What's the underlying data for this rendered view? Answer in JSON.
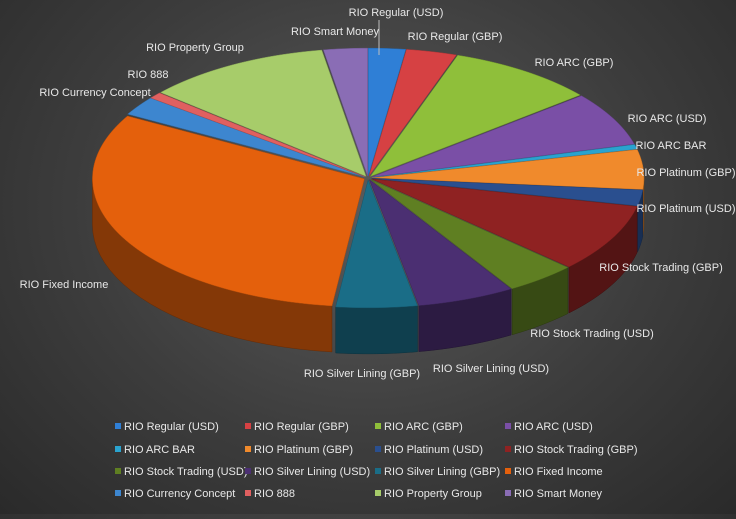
{
  "chart_data": {
    "type": "pie",
    "style": "3d-exploded-perspective",
    "title": "",
    "legend_position": "bottom",
    "labels_outside": true,
    "categories": [
      "RIO Regular (USD)",
      "RIO Regular (GBP)",
      "RIO ARC (GBP)",
      "RIO ARC (USD)",
      "RIO ARC BAR",
      "RIO Platinum (GBP)",
      "RIO Platinum (USD)",
      "RIO Stock Trading (GBP)",
      "RIO Stock Trading (USD)",
      "RIO Silver Lining (USD)",
      "RIO Silver Lining (GBP)",
      "RIO Fixed Income",
      "RIO Currency Concept",
      "RIO 888",
      "RIO Property Group",
      "RIO Smart Money"
    ],
    "values": [
      2.2,
      3.0,
      8.8,
      6.8,
      0.6,
      5.0,
      2.0,
      8.6,
      4.2,
      5.8,
      4.8,
      31.2,
      2.4,
      0.8,
      11.0,
      2.6
    ],
    "colors": [
      "#2f7fd6",
      "#d64143",
      "#8fbf3a",
      "#7a4fa6",
      "#2aa3cf",
      "#f08a2c",
      "#2a4f8f",
      "#8f2222",
      "#5f7f22",
      "#4b2f72",
      "#1a6d87",
      "#e4600c",
      "#3d86cf",
      "#e06060",
      "#a7cc6a",
      "#8a6db5"
    ]
  }
}
